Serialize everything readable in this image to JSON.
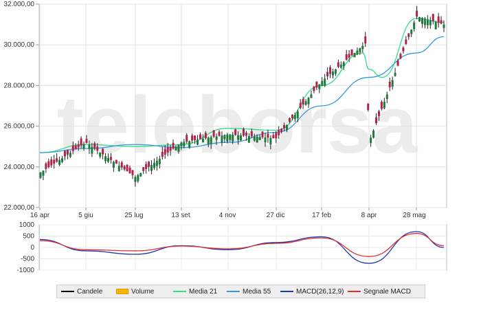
{
  "chart_data": [
    {
      "type": "candlestick",
      "title": "",
      "xlabel": "",
      "ylabel": "",
      "ylim": [
        22000,
        32000
      ],
      "y_ticks": [
        "32.000,00",
        "30.000,00",
        "28.000,00",
        "26.000,00",
        "24.000,00",
        "22.000,00"
      ],
      "x_ticks": [
        "16 apr",
        "5 giu",
        "25 lug",
        "13 set",
        "4 nov",
        "27 dic",
        "17 feb",
        "8 apr",
        "28 mag"
      ],
      "grid": true,
      "watermark": "teleborsa",
      "series": [
        {
          "name": "Media 21",
          "color": "#33dd88",
          "x": [
            "16 apr",
            "5 giu",
            "25 lug",
            "13 set",
            "4 nov",
            "27 dic",
            "17 feb",
            "25 mar",
            "8 apr",
            "20 apr",
            "28 mag",
            "7 giu"
          ],
          "values": [
            24700,
            25100,
            25000,
            25100,
            25900,
            25800,
            28000,
            29600,
            28800,
            28400,
            31300,
            31100
          ]
        },
        {
          "name": "Media 55",
          "color": "#3399dd",
          "x": [
            "16 apr",
            "5 giu",
            "25 lug",
            "13 set",
            "4 nov",
            "27 dic",
            "17 feb",
            "8 apr",
            "28 mag",
            "7 giu"
          ],
          "values": [
            24700,
            24900,
            25100,
            24950,
            25200,
            25700,
            27000,
            28400,
            29600,
            30400
          ]
        },
        {
          "name": "Candele",
          "color": "#000000",
          "x": [
            "16 apr",
            "5 giu",
            "25 lug",
            "13 set",
            "4 nov",
            "27 dic",
            "17 feb",
            "1 apr",
            "8 apr",
            "28 mag",
            "7 giu"
          ],
          "values": [
            23700,
            25200,
            23500,
            25200,
            25600,
            25400,
            28200,
            30100,
            25200,
            31400,
            31000
          ]
        }
      ]
    },
    {
      "type": "line",
      "ylim": [
        -1000,
        1000
      ],
      "y_ticks": [
        "1000",
        "500",
        "0",
        "-500",
        "-1000"
      ],
      "series": [
        {
          "name": "MACD(26,12,9)",
          "color": "#2233aa",
          "x": [
            "16 apr",
            "5 giu",
            "25 lug",
            "13 set",
            "4 nov",
            "27 dic",
            "17 feb",
            "8 apr",
            "28 mag",
            "7 giu"
          ],
          "values": [
            350,
            -150,
            -300,
            80,
            -100,
            220,
            470,
            -700,
            700,
            0
          ]
        },
        {
          "name": "Segnale MACD",
          "color": "#dd3333",
          "x": [
            "16 apr",
            "5 giu",
            "25 lug",
            "13 set",
            "4 nov",
            "27 dic",
            "17 feb",
            "8 apr",
            "28 mag",
            "7 giu"
          ],
          "values": [
            300,
            -100,
            -150,
            60,
            -60,
            180,
            420,
            -400,
            620,
            80
          ]
        }
      ]
    }
  ],
  "legend": [
    {
      "label": "Candele",
      "color": "#000000",
      "kind": "line"
    },
    {
      "label": "Volume",
      "color": "#f7b500",
      "kind": "box"
    },
    {
      "label": "Media 21",
      "color": "#33dd88",
      "kind": "line"
    },
    {
      "label": "Media 55",
      "color": "#3399dd",
      "kind": "line"
    },
    {
      "label": "MACD(26,12,9)",
      "color": "#2233aa",
      "kind": "line"
    },
    {
      "label": "Segnale MACD",
      "color": "#dd3333",
      "kind": "line"
    }
  ]
}
